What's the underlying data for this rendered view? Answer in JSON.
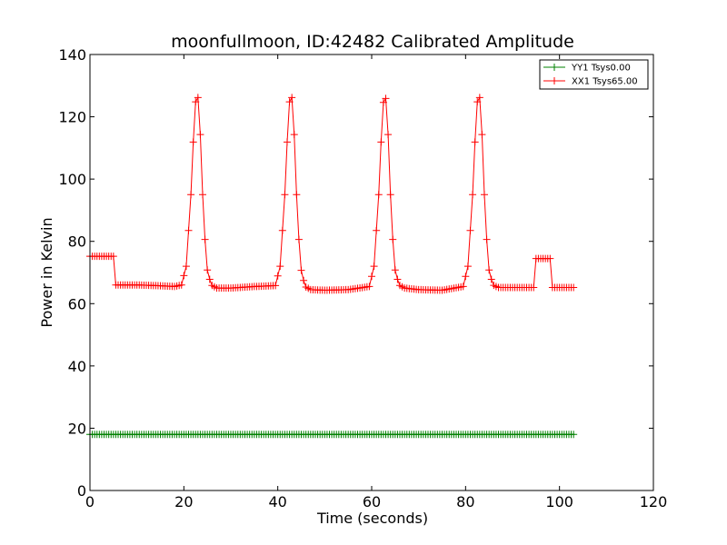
{
  "chart_data": {
    "type": "line",
    "title": "moonfullmoon, ID:42482 Calibrated Amplitude",
    "xlabel": "Time (seconds)",
    "ylabel": "Power in Kelvin",
    "xlim": [
      0,
      120
    ],
    "ylim": [
      0,
      140
    ],
    "xticks": [
      0,
      20,
      40,
      60,
      80,
      100,
      120
    ],
    "yticks": [
      0,
      20,
      40,
      60,
      80,
      100,
      120,
      140
    ],
    "x_tick_labels": [
      "0",
      "20",
      "40",
      "60",
      "80",
      "100",
      "120"
    ],
    "y_tick_labels": [
      "0",
      "20",
      "40",
      "60",
      "80",
      "100",
      "120",
      "140"
    ],
    "grid": false,
    "legend_position": "top-right",
    "sample_interval": 0.5,
    "x_range": [
      0,
      103
    ],
    "series": [
      {
        "name": "YY1 Tsys0.00",
        "color": "#008000",
        "marker": "+",
        "points": [
          [
            0,
            18.0
          ],
          [
            103,
            18.0
          ]
        ]
      },
      {
        "name": "XX1 Tsys65.00",
        "color": "#ff0000",
        "marker": "+",
        "points": [
          [
            0,
            75.2
          ],
          [
            5.0,
            75.2
          ],
          [
            5.3,
            66.0
          ],
          [
            10,
            66.0
          ],
          [
            14,
            65.8
          ],
          [
            18,
            65.5
          ],
          [
            19.5,
            66.0
          ],
          [
            20.5,
            72.0
          ],
          [
            21.5,
            95.0
          ],
          [
            22.3,
            122.0
          ],
          [
            22.8,
            129.0
          ],
          [
            23.3,
            122.0
          ],
          [
            24.0,
            95.0
          ],
          [
            24.8,
            72.0
          ],
          [
            25.8,
            66.0
          ],
          [
            27,
            65.0
          ],
          [
            30,
            65.0
          ],
          [
            35,
            65.5
          ],
          [
            39.5,
            65.8
          ],
          [
            40.5,
            72.0
          ],
          [
            41.5,
            95.0
          ],
          [
            42.3,
            122.0
          ],
          [
            42.8,
            129.0
          ],
          [
            43.3,
            122.0
          ],
          [
            44.0,
            95.0
          ],
          [
            44.8,
            72.0
          ],
          [
            45.8,
            65.5
          ],
          [
            47,
            64.5
          ],
          [
            50,
            64.3
          ],
          [
            55,
            64.5
          ],
          [
            59.5,
            65.5
          ],
          [
            60.5,
            72.0
          ],
          [
            61.5,
            95.0
          ],
          [
            62.3,
            122.0
          ],
          [
            62.8,
            128.5
          ],
          [
            63.3,
            122.0
          ],
          [
            64.0,
            95.0
          ],
          [
            64.8,
            72.0
          ],
          [
            65.8,
            66.0
          ],
          [
            67,
            65.0
          ],
          [
            70,
            64.5
          ],
          [
            75,
            64.3
          ],
          [
            79.5,
            65.5
          ],
          [
            80.5,
            72.0
          ],
          [
            81.5,
            95.0
          ],
          [
            82.3,
            122.0
          ],
          [
            82.8,
            129.0
          ],
          [
            83.3,
            122.0
          ],
          [
            84.0,
            95.0
          ],
          [
            84.8,
            72.0
          ],
          [
            85.8,
            66.0
          ],
          [
            87,
            65.2
          ],
          [
            90,
            65.2
          ],
          [
            94.5,
            65.2
          ],
          [
            94.9,
            74.5
          ],
          [
            98,
            74.5
          ],
          [
            98.3,
            65.2
          ],
          [
            103,
            65.2
          ]
        ]
      }
    ]
  }
}
